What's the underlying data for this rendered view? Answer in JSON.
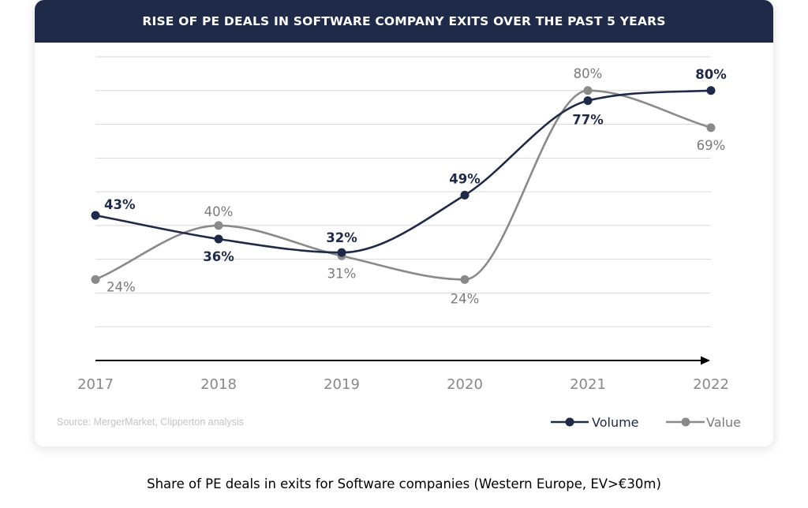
{
  "title": "RISE OF PE DEALS IN SOFTWARE COMPANY EXITS OVER THE PAST 5 YEARS",
  "source": "Source: MergerMarket, Clipperton analysis",
  "caption": "Share of PE deals in exits for Software companies (Western Europe, EV>€30m)",
  "colors": {
    "header": "#1f2a48",
    "volume": "#1f2a48",
    "value": "#8a8a8a",
    "grid": "#d9d9d9"
  },
  "chart_data": {
    "type": "line",
    "x": [
      "2017",
      "2018",
      "2019",
      "2020",
      "2021",
      "2022"
    ],
    "series": [
      {
        "name": "Volume",
        "values": [
          43,
          36,
          32,
          49,
          77,
          80
        ],
        "labels": [
          "43%",
          "36%",
          "32%",
          "49%",
          "77%",
          "80%"
        ]
      },
      {
        "name": "Value",
        "values": [
          24,
          40,
          31,
          24,
          80,
          69
        ],
        "labels": [
          "24%",
          "40%",
          "31%",
          "24%",
          "80%",
          "69%"
        ]
      }
    ],
    "ylim": [
      0,
      90
    ],
    "grid": true,
    "legend": "bottom-right",
    "axis_arrow": true
  }
}
